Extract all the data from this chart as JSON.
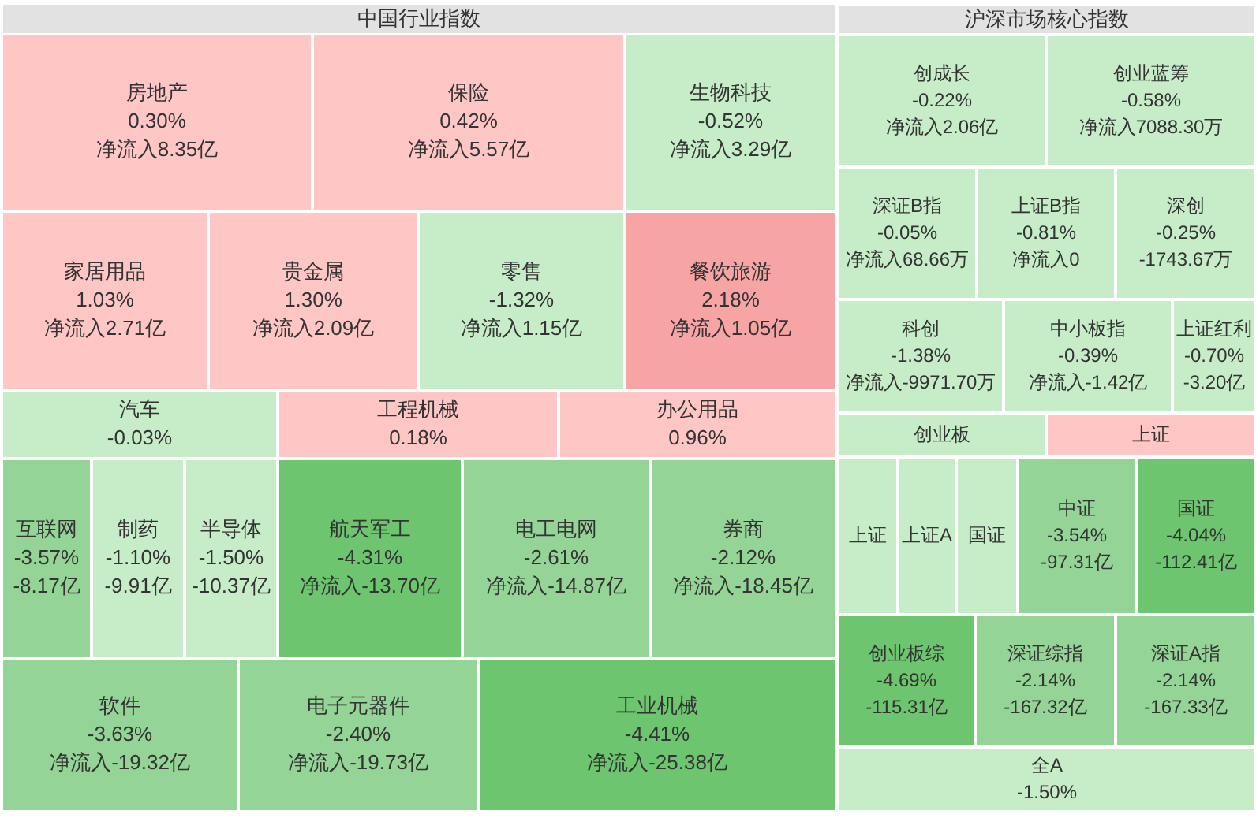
{
  "chart_data": [
    {
      "type": "other",
      "title": "中国行业指数",
      "categories": [
        "房地产",
        "保险",
        "生物科技",
        "家居用品",
        "贵金属",
        "零售",
        "餐饮旅游",
        "汽车",
        "工程机械",
        "办公用品",
        "互联网",
        "制药",
        "半导体",
        "航天军工",
        "电工电网",
        "券商",
        "软件",
        "电子元器件",
        "工业机械"
      ],
      "series": [
        {
          "colors": [
            "#ffc6c6",
            "#ffc6c6",
            "#c6edc8",
            "#ffc6c6",
            "#ffc6c6",
            "#c6edc8",
            "#f6a4a4",
            "#c6edc8",
            "#ffc6c6",
            "#ffc6c6",
            "#94d496",
            "#c6edc8",
            "#c6edc8",
            "#6dc56f",
            "#94d496",
            "#94d496",
            "#94d496",
            "#94d496",
            "#6dc56f"
          ],
          "values": [
            0.3,
            0.42,
            -0.52,
            1.03,
            1.3,
            -1.32,
            2.18,
            -0.03,
            0.18,
            0.96,
            -3.57,
            -1.1,
            -1.5,
            -4.31,
            -2.61,
            -2.12,
            -3.63,
            -2.4,
            -4.41
          ],
          "value_labels": [
            "0.30%",
            "0.42%",
            "-0.52%",
            "1.03%",
            "1.30%",
            "-1.32%",
            "2.18%",
            "-0.03%",
            "0.18%",
            "0.96%",
            "-3.57%",
            "-1.10%",
            "-1.50%",
            "-4.31%",
            "-2.61%",
            "-2.12%",
            "-3.63%",
            "-2.40%",
            "-4.41%"
          ]
        },
        {
          "values": [
            8.35,
            5.57,
            3.29,
            2.71,
            2.09,
            1.15,
            1.05,
            null,
            null,
            null,
            -8.17,
            -9.91,
            -10.37,
            -13.7,
            -14.87,
            -18.45,
            -19.32,
            -19.73,
            -25.38
          ],
          "value_labels": [
            "净流入8.35亿",
            "净流入5.57亿",
            "净流入3.29亿",
            "净流入2.71亿",
            "净流入2.09亿",
            "净流入1.15亿",
            "净流入1.05亿",
            null,
            null,
            null,
            "-8.17亿",
            "-9.91亿",
            "-10.37亿",
            "净流入-13.70亿",
            "净流入-14.87亿",
            "净流入-18.45亿",
            "净流入-19.32亿",
            "净流入-19.73亿",
            "净流入-25.38亿"
          ]
        }
      ]
    },
    {
      "type": "other",
      "title": "沪深市场核心指数",
      "categories": [
        "创成长",
        "创业蓝筹",
        "深证B指",
        "上证B指",
        "深创",
        "科创",
        "中小板指",
        "上证红利",
        "创业板",
        "上证",
        "上证",
        "上证A",
        "国证",
        "中证",
        "国证",
        "创业板综",
        "深证综指",
        "深证A指",
        "全A"
      ],
      "series": [
        {
          "colors": [
            "#c6edc8",
            "#c6edc8",
            "#c6edc8",
            "#c6edc8",
            "#c6edc8",
            "#c6edc8",
            "#c6edc8",
            "#c6edc8",
            "#c6edc8",
            "#ffc6c6",
            "#c6edc8",
            "#c6edc8",
            "#c6edc8",
            "#94d496",
            "#6dc56f",
            "#6dc56f",
            "#94d496",
            "#94d496",
            "#c6edc8"
          ],
          "values": [
            -0.22,
            -0.58,
            -0.05,
            -0.81,
            -0.25,
            -1.38,
            -0.39,
            -0.7,
            null,
            null,
            null,
            null,
            null,
            -3.54,
            -4.04,
            -4.69,
            -2.14,
            -2.14,
            -1.5
          ],
          "value_labels": [
            "-0.22%",
            "-0.58%",
            "-0.05%",
            "-0.81%",
            "-0.25%",
            "-1.38%",
            "-0.39%",
            "-0.70%",
            null,
            null,
            null,
            null,
            null,
            "-3.54%",
            "-4.04%",
            "-4.69%",
            "-2.14%",
            "-2.14%",
            "-1.50%"
          ]
        },
        {
          "values": [
            2.06,
            7088.3,
            68.66,
            0,
            -1743.67,
            -9971.7,
            -1.42,
            -3.2,
            null,
            null,
            null,
            null,
            null,
            -97.31,
            -112.41,
            -115.31,
            -167.32,
            -167.33,
            null
          ],
          "value_labels": [
            "净流入2.06亿",
            "净流入7088.30万",
            "净流入68.66万",
            "净流入0",
            "-1743.67万",
            "净流入-9971.70万",
            "净流入-1.42亿",
            "-3.20亿",
            null,
            null,
            null,
            null,
            null,
            "-97.31亿",
            "-112.41亿",
            "-115.31亿",
            "-167.32亿",
            "-167.33亿",
            null
          ]
        }
      ]
    }
  ]
}
